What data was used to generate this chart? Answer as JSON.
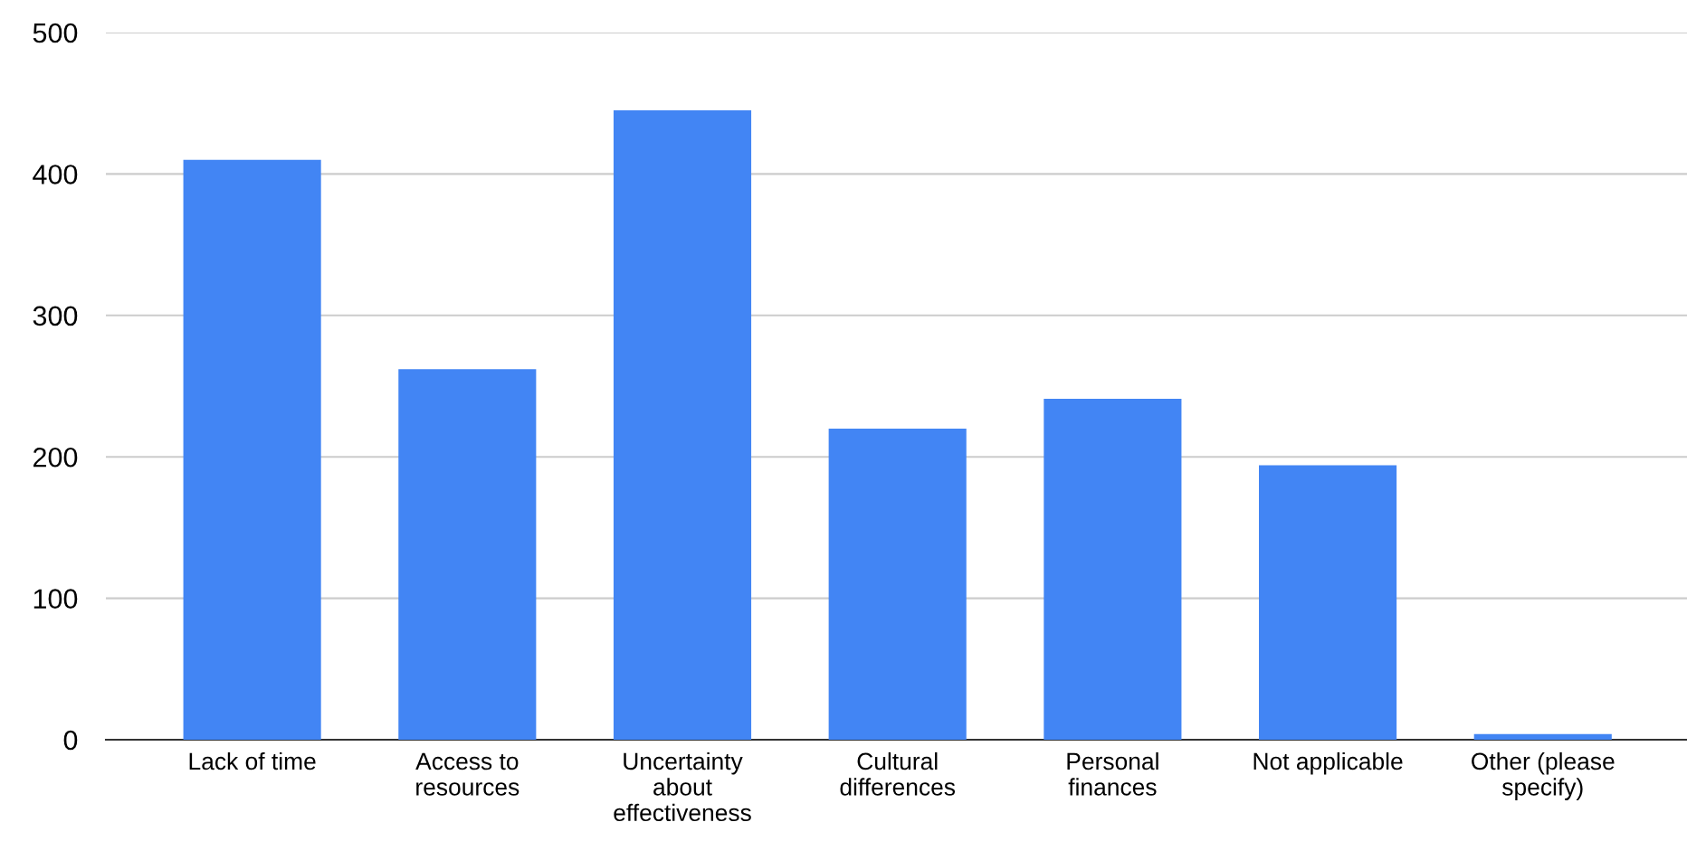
{
  "chart_data": {
    "type": "bar",
    "categories": [
      "Lack of time",
      "Access to\nresources",
      "Uncertainty\nabout\neffectiveness",
      "Cultural\ndifferences",
      "Personal\nfinances",
      "Not applicable",
      "Other (please\nspecify)"
    ],
    "values": [
      410,
      262,
      445,
      220,
      241,
      194,
      4
    ],
    "color": "#4285f4",
    "ylim": [
      0,
      500
    ],
    "yticks": [
      0,
      100,
      200,
      300,
      400,
      500
    ],
    "grid": "y",
    "legend": false
  }
}
